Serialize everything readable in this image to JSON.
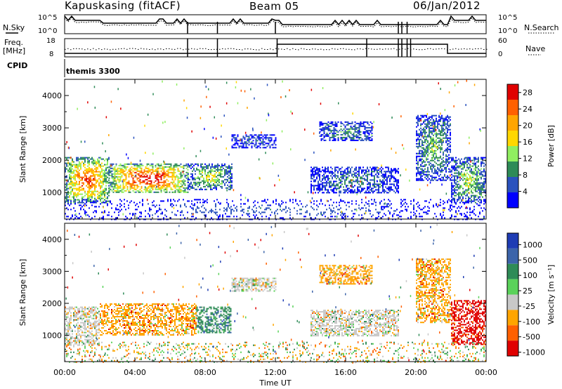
{
  "header": {
    "station": "Kapuskasing (fitACF)",
    "beam": "Beam 05",
    "date": "06/Jan/2012"
  },
  "strip_labels": {
    "nsky": "N.Sky",
    "nsearch": "N.Search",
    "freq": "Freq.",
    "freq_unit": "[MHz]",
    "nave": "Nave",
    "cpid": "CPID",
    "cpid_value": "themis 3300",
    "noise_ticks": [
      "10^5",
      "10^0"
    ],
    "freq_ticks": [
      "18",
      "8"
    ],
    "nave_ticks": [
      "60",
      "0"
    ]
  },
  "chart_data": [
    {
      "type": "heatmap",
      "panel": "power",
      "ylabel": "Slant Range [km]",
      "xlabel": "Time UT",
      "x_ticks": [
        "00:00",
        "04:00",
        "08:00",
        "12:00",
        "16:00",
        "20:00",
        "00:00"
      ],
      "xlim_hours": [
        0,
        24
      ],
      "ylim_km": [
        180,
        4500
      ],
      "y_ticks": [
        "1000",
        "2000",
        "3000",
        "4000"
      ],
      "y_tick_values": [
        1000,
        2000,
        3000,
        4000
      ],
      "colorbar": {
        "label": "Power [dB]",
        "ticks": [
          "4",
          "8",
          "12",
          "16",
          "20",
          "24",
          "28"
        ],
        "tick_values": [
          4,
          8,
          12,
          16,
          20,
          24,
          28
        ],
        "range": [
          0,
          30
        ],
        "colors": [
          "#0000ff",
          "#2a52be",
          "#2e8b57",
          "#90ee60",
          "#ffd700",
          "#ffa500",
          "#ff6000",
          "#e00000"
        ]
      },
      "echo_regions": [
        {
          "t0": 0.0,
          "t1": 2.5,
          "r0": 700,
          "r1": 2100,
          "level": 0.65
        },
        {
          "t0": 2.5,
          "t1": 7.0,
          "r0": 1000,
          "r1": 1900,
          "level": 0.75
        },
        {
          "t0": 7.0,
          "t1": 9.5,
          "r0": 1100,
          "r1": 1900,
          "level": 0.4
        },
        {
          "t0": 9.5,
          "t1": 12.0,
          "r0": 2400,
          "r1": 2800,
          "level": 0.15
        },
        {
          "t0": 14.0,
          "t1": 19.0,
          "r0": 1000,
          "r1": 1800,
          "level": 0.2
        },
        {
          "t0": 14.5,
          "t1": 17.5,
          "r0": 2600,
          "r1": 3200,
          "level": 0.25
        },
        {
          "t0": 20.0,
          "t1": 22.0,
          "r0": 1400,
          "r1": 3400,
          "level": 0.3
        },
        {
          "t0": 22.0,
          "t1": 24.0,
          "r0": 700,
          "r1": 2100,
          "level": 0.35
        },
        {
          "t0": 0.0,
          "t1": 24.0,
          "r0": 180,
          "r1": 800,
          "level": 0.25
        }
      ]
    },
    {
      "type": "heatmap",
      "panel": "velocity",
      "ylabel": "Slant Range [km]",
      "xlabel": "Time UT",
      "x_ticks": [
        "00:00",
        "04:00",
        "08:00",
        "12:00",
        "16:00",
        "20:00",
        "00:00"
      ],
      "xlim_hours": [
        0,
        24
      ],
      "ylim_km": [
        180,
        4500
      ],
      "y_ticks": [
        "1000",
        "2000",
        "3000",
        "4000"
      ],
      "y_tick_values": [
        1000,
        2000,
        3000,
        4000
      ],
      "colorbar": {
        "label": "Velocity [m s⁻¹]",
        "ticks": [
          "1000",
          "500",
          "100",
          "25",
          "-25",
          "-100",
          "-500",
          "-1000"
        ],
        "colors": [
          "#1e3cb4",
          "#3c64aa",
          "#2e8b57",
          "#5ad25a",
          "#c8c8c8",
          "#ffa500",
          "#ff6000",
          "#e00000"
        ]
      },
      "echo_regions": [
        {
          "t0": 0.0,
          "t1": 2.0,
          "r0": 700,
          "r1": 1900,
          "class": "gray"
        },
        {
          "t0": 2.0,
          "t1": 7.5,
          "r0": 1000,
          "r1": 2000,
          "class": "orange"
        },
        {
          "t0": 7.5,
          "t1": 9.5,
          "r0": 1100,
          "r1": 1900,
          "class": "green"
        },
        {
          "t0": 9.5,
          "t1": 12.0,
          "r0": 2400,
          "r1": 2800,
          "class": "gray"
        },
        {
          "t0": 14.0,
          "t1": 19.0,
          "r0": 1000,
          "r1": 1800,
          "class": "gray"
        },
        {
          "t0": 14.5,
          "t1": 17.5,
          "r0": 2600,
          "r1": 3200,
          "class": "orange"
        },
        {
          "t0": 20.0,
          "t1": 22.0,
          "r0": 1400,
          "r1": 3400,
          "class": "orange"
        },
        {
          "t0": 22.0,
          "t1": 24.0,
          "r0": 700,
          "r1": 2100,
          "class": "red"
        },
        {
          "t0": 0.0,
          "t1": 24.0,
          "r0": 180,
          "r1": 800,
          "class": "gray"
        }
      ]
    }
  ]
}
